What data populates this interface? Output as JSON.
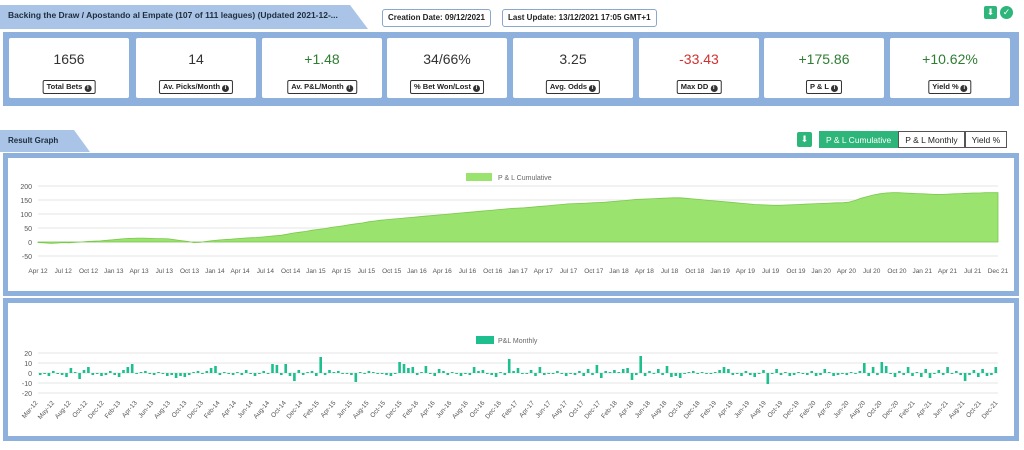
{
  "header": {
    "title": "Backing the Draw / Apostando al Empate (107 of 111 leagues) (Updated 2021-12-...",
    "creation_date": "Creation Date: 09/12/2021",
    "last_update": "Last Update: 13/12/2021 17:05 GMT+1"
  },
  "stats": [
    {
      "value": "1656",
      "label": "Total Bets",
      "tone": "neutral"
    },
    {
      "value": "14",
      "label": "Av. Picks/Month",
      "tone": "neutral"
    },
    {
      "value": "+1.48",
      "label": "Av. P&L/Month",
      "tone": "pos"
    },
    {
      "value": "34/66%",
      "label": "% Bet Won/Lost",
      "tone": "neutral"
    },
    {
      "value": "3.25",
      "label": "Avg. Odds",
      "tone": "neutral"
    },
    {
      "value": "-33.43",
      "label": "Max DD",
      "tone": "neg"
    },
    {
      "value": "+175.86",
      "label": "P & L",
      "tone": "pos"
    },
    {
      "value": "+10.62%",
      "label": "Yield %",
      "tone": "pos"
    }
  ],
  "result_graph": {
    "tab_label": "Result Graph",
    "toggles": [
      {
        "label": "P & L Cumulative",
        "active": true
      },
      {
        "label": "P & L Monthly",
        "active": false
      },
      {
        "label": "Yield %",
        "active": false
      }
    ]
  },
  "icons": {
    "download": "download-icon",
    "check": "check-icon",
    "info": "info-icon"
  },
  "colors": {
    "panel": "#8db1dc",
    "tab": "#a9c4e6",
    "accent": "#2db57a",
    "cumulative_fill": "#9be36f",
    "monthly_bar": "#1dbf8e",
    "positive": "#2e7d32",
    "negative": "#d32f2f"
  },
  "chart_data": [
    {
      "type": "area",
      "title": "",
      "legend": "P & L Cumulative",
      "legend_position": "top-center",
      "grid": true,
      "ylim": [
        -5,
        200
      ],
      "yticks": [
        200,
        150,
        100,
        50,
        0,
        -50
      ],
      "xticks": [
        "Apr 12",
        "Jul 12",
        "Oct 12",
        "Jan 13",
        "Apr 13",
        "Jul 13",
        "Oct 13",
        "Jan 14",
        "Apr 14",
        "Jul 14",
        "Oct 14",
        "Jan 15",
        "Apr 15",
        "Jul 15",
        "Oct 15",
        "Jan 16",
        "Apr 16",
        "Jul 16",
        "Oct 16",
        "Jan 17",
        "Apr 17",
        "Jul 17",
        "Oct 17",
        "Jan 18",
        "Apr 18",
        "Jul 18",
        "Oct 18",
        "Jan 19",
        "Apr 19",
        "Jul 19",
        "Oct 19",
        "Jan 20",
        "Apr 20",
        "Jul 20",
        "Oct 20",
        "Jan 21",
        "Apr 21",
        "Jul 21",
        "Dec 21"
      ],
      "series": [
        {
          "name": "P & L Cumulative",
          "values": [
            -2,
            -3,
            -5,
            -4,
            -2,
            -3,
            -1,
            0,
            2,
            3,
            4,
            6,
            8,
            10,
            12,
            13,
            14,
            14,
            13,
            12,
            12,
            11,
            8,
            5,
            2,
            -2,
            -1,
            2,
            5,
            7,
            9,
            10,
            12,
            14,
            15,
            16,
            18,
            20,
            22,
            24,
            28,
            32,
            35,
            38,
            42,
            45,
            48,
            52,
            55,
            58,
            62,
            65,
            68,
            72,
            75,
            78,
            80,
            82,
            84,
            86,
            88,
            90,
            92,
            94,
            96,
            98,
            100,
            102,
            104,
            106,
            108,
            110,
            112,
            114,
            116,
            118,
            120,
            121,
            122,
            124,
            126,
            128,
            130,
            132,
            134,
            136,
            137,
            138,
            139,
            140,
            141,
            142,
            144,
            146,
            148,
            150,
            152,
            153,
            154,
            155,
            156,
            157,
            158,
            158,
            156,
            154,
            152,
            150,
            148,
            146,
            144,
            142,
            140,
            138,
            136,
            134,
            133,
            132,
            131,
            131,
            132,
            133,
            134,
            135,
            136,
            137,
            138,
            139,
            140,
            140,
            142,
            148,
            156,
            162,
            168,
            172,
            175,
            176,
            176,
            175,
            174,
            173,
            172,
            171,
            170,
            170,
            171,
            172,
            173,
            174,
            175,
            175,
            176,
            176,
            176
          ]
        }
      ]
    },
    {
      "type": "bar",
      "title": "",
      "legend": "P&L Monthly",
      "legend_position": "top-center",
      "grid": true,
      "ylim": [
        -20,
        20
      ],
      "yticks": [
        20,
        10,
        0,
        -10,
        -20
      ],
      "xticks": [
        "Mar-12",
        "May-12",
        "Aug-12",
        "Oct-12",
        "Dec-12",
        "Feb-13",
        "Apr-13",
        "Jun-13",
        "Aug-13",
        "Oct-13",
        "Dec-13",
        "Feb-14",
        "Apr-14",
        "Jun-14",
        "Aug-14",
        "Oct-14",
        "Dec-14",
        "Feb-15",
        "Apr-15",
        "Jun-15",
        "Aug-15",
        "Oct-15",
        "Dec-15",
        "Feb-16",
        "Apr-16",
        "Jun-16",
        "Aug-16",
        "Oct-16",
        "Dec-16",
        "Feb-17",
        "Apr-17",
        "Jun-17",
        "Aug-17",
        "Oct-17",
        "Dec-17",
        "Feb-18",
        "Apr-18",
        "Jun-18",
        "Aug-18",
        "Oct-18",
        "Dec-18",
        "Feb-19",
        "Apr-19",
        "Jun-19",
        "Aug-19",
        "Oct-19",
        "Dec-19",
        "Feb-20",
        "Apr-20",
        "Jun-20",
        "Aug-20",
        "Oct-20",
        "Dec-20",
        "Feb-21",
        "Apr-21",
        "Jun-21",
        "Aug-21",
        "Oct-21",
        "Dec-21"
      ],
      "series": [
        {
          "name": "P&L Monthly",
          "values": [
            -2,
            -1,
            -3,
            2,
            -1,
            -2,
            -4,
            5,
            1,
            -6,
            3,
            6,
            -2,
            -1,
            -3,
            -2,
            2,
            -2,
            -4,
            3,
            6,
            9,
            -1,
            1,
            2,
            -1,
            -2,
            1,
            -1,
            -3,
            -2,
            -5,
            -3,
            -4,
            -2,
            1,
            2,
            -1,
            2,
            5,
            7,
            -2,
            1,
            -1,
            -2,
            1,
            -2,
            3,
            -1,
            -3,
            -1,
            2,
            -1,
            9,
            8,
            -2,
            9,
            -3,
            -8,
            3,
            -2,
            1,
            2,
            -3,
            16,
            -2,
            3,
            1,
            2,
            -1,
            -1,
            -2,
            -9,
            1,
            -1,
            2,
            1,
            -1,
            -1,
            -2,
            -3,
            -1,
            11,
            9,
            5,
            6,
            -2,
            1,
            7,
            -1,
            -3,
            4,
            2,
            -2,
            1,
            -1,
            -3,
            -1,
            -2,
            6,
            2,
            3,
            -1,
            -2,
            -4,
            1,
            -2,
            14,
            2,
            5,
            -1,
            -1,
            3,
            -3,
            6,
            -2,
            -1,
            -1,
            2,
            -1,
            -3,
            -1,
            -2,
            2,
            -3,
            4,
            -2,
            8,
            -5,
            2,
            1,
            3,
            1,
            4,
            5,
            -7,
            -2,
            17,
            -3,
            2,
            -1,
            4,
            -2,
            7,
            -4,
            -3,
            -5,
            -1,
            1,
            2,
            -1,
            1,
            -1,
            -1,
            1,
            3,
            6,
            4,
            -2,
            -1,
            -3,
            2,
            -2,
            -4,
            -1,
            3,
            -11,
            -1,
            4,
            -2,
            1,
            -3,
            -2,
            1,
            -1,
            -2,
            2,
            -3,
            -2,
            4,
            1,
            -3,
            -2,
            -1,
            -2,
            1,
            -1,
            2,
            10,
            -3,
            6,
            -2,
            11,
            7,
            -1,
            -4,
            2,
            -2,
            6,
            -3,
            1,
            -4,
            4,
            -5,
            -1,
            3,
            -2,
            6,
            -1,
            2,
            -2,
            -8,
            -2,
            3,
            -4,
            4,
            -3,
            -2,
            6
          ]
        }
      ]
    }
  ]
}
